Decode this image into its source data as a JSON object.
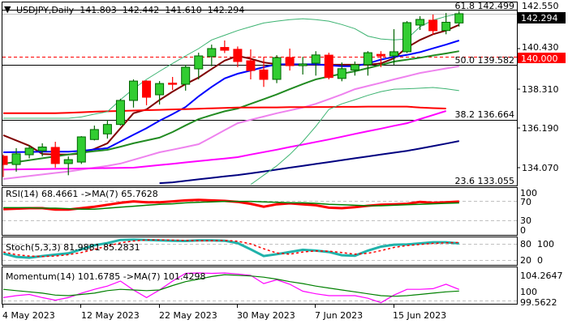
{
  "header": {
    "symbol_timeframe": "USDJPY,Daily",
    "open": "141.803",
    "high": "142.442",
    "low": "141.610",
    "close": "142.294"
  },
  "price_axis": {
    "ticks": [
      "142.550",
      "140.430",
      "138.310",
      "136.190",
      "134.070"
    ],
    "current_price_label": "142.294",
    "current_price_color": "#000000",
    "level_label": "140.000",
    "level_color": "#ff0000"
  },
  "fib_levels": [
    {
      "label": "61.8 142.499",
      "level": 142.499
    },
    {
      "label": "50.0 139.582",
      "level": 139.582
    },
    {
      "label": "38.2 136.664",
      "level": 136.664
    },
    {
      "label": "23.6 133.055",
      "level": 133.055
    }
  ],
  "date_axis": [
    {
      "label": "4 May 2023",
      "date": "2023-05-04"
    },
    {
      "label": "12 May 2023",
      "date": "2023-05-12"
    },
    {
      "label": "22 May 2023",
      "date": "2023-05-22"
    },
    {
      "label": "30 May 2023",
      "date": "2023-05-30"
    },
    {
      "label": "7 Jun 2023",
      "date": "2023-06-07"
    },
    {
      "label": "15 Jun 2023",
      "date": "2023-06-15"
    }
  ],
  "indicators": {
    "rsi": {
      "label": "RSI(14) 68.4661  ->MA(7) 65.7628",
      "axis": [
        "100",
        "70",
        "30",
        "0"
      ]
    },
    "stoch": {
      "label": "Stoch(5,3,3) 81.9881 85.2831",
      "axis": [
        "80",
        "100",
        "20",
        "0"
      ]
    },
    "momentum": {
      "label": "Momentum(14) 101.6785  ->MA(7) 101.4298",
      "axis": [
        "104.2647",
        "99.5622",
        "100"
      ]
    }
  },
  "colors": {
    "bull_fill": "#32cd32",
    "bull_edge": "#006400",
    "bear": "#ff0000"
  },
  "chart_data": {
    "type": "candlestick",
    "ylim": [
      133.0,
      142.6
    ],
    "dates": [
      "2023-05-04",
      "2023-05-05",
      "2023-05-08",
      "2023-05-09",
      "2023-05-10",
      "2023-05-11",
      "2023-05-12",
      "2023-05-15",
      "2023-05-16",
      "2023-05-17",
      "2023-05-18",
      "2023-05-19",
      "2023-05-22",
      "2023-05-23",
      "2023-05-24",
      "2023-05-25",
      "2023-05-26",
      "2023-05-29",
      "2023-05-30",
      "2023-05-31",
      "2023-06-01",
      "2023-06-02",
      "2023-06-05",
      "2023-06-06",
      "2023-06-07",
      "2023-06-08",
      "2023-06-09",
      "2023-06-12",
      "2023-06-13",
      "2023-06-14",
      "2023-06-15",
      "2023-06-16",
      "2023-06-19",
      "2023-06-20",
      "2023-06-21",
      "2023-06-22"
    ],
    "candles": [
      [
        134.71,
        134.8,
        133.6,
        134.27
      ],
      [
        134.27,
        135.14,
        133.89,
        134.84
      ],
      [
        134.79,
        135.3,
        134.6,
        135.14
      ],
      [
        135.0,
        135.4,
        134.7,
        135.2
      ],
      [
        135.18,
        135.48,
        134.1,
        134.32
      ],
      [
        134.32,
        134.7,
        133.7,
        134.53
      ],
      [
        134.4,
        135.78,
        134.3,
        135.74
      ],
      [
        135.6,
        136.34,
        135.55,
        136.13
      ],
      [
        135.9,
        136.65,
        135.65,
        136.4
      ],
      [
        136.4,
        137.77,
        136.34,
        137.68
      ],
      [
        137.68,
        138.8,
        137.3,
        138.71
      ],
      [
        138.71,
        138.75,
        137.42,
        137.85
      ],
      [
        137.98,
        138.71,
        137.46,
        138.58
      ],
      [
        138.6,
        138.93,
        138.24,
        138.55
      ],
      [
        138.54,
        139.58,
        138.2,
        139.45
      ],
      [
        139.36,
        140.22,
        138.8,
        140.05
      ],
      [
        140.01,
        140.65,
        139.5,
        140.44
      ],
      [
        140.5,
        140.87,
        140.2,
        140.35
      ],
      [
        140.4,
        140.55,
        139.45,
        139.75
      ],
      [
        139.79,
        140.4,
        138.8,
        139.27
      ],
      [
        139.3,
        140.0,
        138.4,
        138.8
      ],
      [
        138.8,
        140.09,
        138.6,
        139.96
      ],
      [
        139.96,
        140.44,
        139.27,
        139.53
      ],
      [
        139.53,
        140.0,
        139.06,
        139.62
      ],
      [
        139.66,
        140.3,
        139.0,
        140.1
      ],
      [
        140.09,
        140.22,
        138.8,
        138.9
      ],
      [
        138.85,
        139.7,
        138.7,
        139.37
      ],
      [
        139.3,
        139.75,
        139.0,
        139.58
      ],
      [
        139.58,
        140.3,
        139.0,
        140.22
      ],
      [
        140.13,
        140.3,
        139.45,
        140.05
      ],
      [
        140.05,
        141.47,
        139.58,
        140.27
      ],
      [
        140.27,
        141.9,
        140.2,
        141.82
      ],
      [
        141.69,
        142.16,
        141.43,
        141.99
      ],
      [
        141.95,
        142.25,
        141.17,
        141.39
      ],
      [
        141.4,
        142.33,
        141.2,
        141.84
      ],
      [
        141.803,
        142.442,
        141.61,
        142.294
      ]
    ],
    "overlays": [
      {
        "color": "#800000",
        "width": 2,
        "values": [
          135.83,
          135.55,
          135.27,
          134.83,
          134.8,
          134.8,
          134.85,
          135.1,
          135.4,
          136.2,
          137.0,
          137.2,
          137.7,
          138.15,
          138.55,
          138.9,
          139.35,
          139.8,
          140.05,
          139.9,
          139.7,
          139.6,
          139.58,
          139.58,
          139.58,
          139.58,
          139.58,
          139.58,
          139.58,
          139.65,
          139.92,
          140.5,
          140.9,
          141.2,
          141.4,
          141.7
        ]
      },
      {
        "color": "#0000ff",
        "width": 2,
        "values": [
          134.92,
          134.93,
          134.94,
          134.95,
          134.95,
          134.95,
          135.0,
          135.07,
          135.14,
          135.5,
          135.85,
          136.2,
          136.6,
          136.95,
          137.33,
          137.9,
          138.4,
          138.85,
          139.1,
          139.27,
          139.45,
          139.6,
          139.6,
          139.6,
          139.6,
          139.55,
          139.5,
          139.5,
          139.65,
          139.85,
          140.0,
          140.1,
          140.25,
          140.45,
          140.65,
          140.87
        ]
      },
      {
        "color": "#228b22",
        "width": 2,
        "values": [
          134.32,
          134.4,
          134.5,
          134.6,
          134.7,
          134.8,
          134.9,
          134.98,
          135.05,
          135.22,
          135.4,
          135.55,
          135.7,
          136.0,
          136.35,
          136.69,
          136.9,
          137.1,
          137.25,
          137.5,
          137.75,
          138.0,
          138.28,
          138.55,
          138.8,
          138.95,
          139.1,
          139.23,
          139.4,
          139.57,
          139.75,
          139.85,
          139.95,
          140.07,
          140.18,
          140.3
        ]
      },
      {
        "color": "#ee82ee",
        "width": 2,
        "values": [
          133.5,
          133.58,
          133.66,
          133.74,
          133.82,
          133.9,
          134.0,
          134.1,
          134.2,
          134.32,
          134.52,
          134.72,
          134.92,
          135.06,
          135.2,
          135.35,
          135.72,
          136.1,
          136.47,
          136.65,
          136.82,
          137.0,
          137.15,
          137.3,
          137.5,
          137.75,
          138.0,
          138.28,
          138.45,
          138.62,
          138.8,
          138.97,
          139.14,
          139.26,
          139.38,
          139.5
        ]
      },
      {
        "color": "#ff00ff",
        "width": 2,
        "values": [
          134.0,
          134.01,
          134.02,
          134.03,
          134.04,
          134.05,
          134.06,
          134.07,
          134.08,
          134.09,
          134.1,
          134.17,
          134.24,
          134.31,
          134.38,
          134.45,
          134.52,
          134.59,
          134.66,
          134.8,
          134.93,
          135.06,
          135.2,
          135.33,
          135.47,
          135.6,
          135.75,
          135.9,
          136.04,
          136.18,
          136.33,
          136.47,
          136.69,
          136.9,
          137.12,
          null
        ]
      },
      {
        "color": "#000080",
        "width": 2,
        "values": [
          null,
          null,
          null,
          null,
          null,
          null,
          null,
          null,
          null,
          null,
          null,
          null,
          133.28,
          133.32,
          133.4,
          133.48,
          133.56,
          133.64,
          133.71,
          133.8,
          133.9,
          134.0,
          134.1,
          134.2,
          134.3,
          134.4,
          134.5,
          134.6,
          134.7,
          134.8,
          134.9,
          135.0,
          135.12,
          135.25,
          135.38,
          135.52
        ]
      },
      {
        "color": "#ff0000",
        "width": 2,
        "values": [
          137.0,
          137.0,
          137.0,
          137.0,
          137.0,
          137.02,
          137.05,
          137.08,
          137.1,
          137.12,
          137.14,
          137.16,
          137.18,
          137.2,
          137.22,
          137.24,
          137.26,
          137.28,
          137.3,
          137.3,
          137.31,
          137.31,
          137.32,
          137.32,
          137.33,
          137.33,
          137.34,
          137.34,
          137.35,
          137.35,
          137.35,
          137.35,
          137.3,
          137.27,
          137.25,
          null
        ]
      },
      {
        "color": "#3cb371",
        "width": 1,
        "values": [
          136.73,
          136.73,
          136.73,
          136.73,
          136.73,
          136.73,
          136.8,
          136.95,
          137.08,
          137.72,
          138.3,
          138.8,
          139.23,
          139.65,
          140.05,
          140.44,
          140.9,
          141.15,
          141.4,
          141.6,
          141.8,
          141.9,
          141.98,
          142.03,
          141.98,
          141.9,
          141.72,
          141.5,
          141.1,
          140.95,
          140.9,
          140.95,
          141.6,
          141.95,
          142.15,
          142.3
        ]
      },
      {
        "color": "#3cb371",
        "width": 1,
        "values": [
          null,
          null,
          null,
          null,
          null,
          null,
          null,
          null,
          null,
          null,
          null,
          null,
          null,
          null,
          null,
          null,
          null,
          null,
          null,
          133.2,
          133.7,
          134.2,
          134.8,
          135.5,
          136.3,
          137.2,
          137.5,
          137.72,
          137.95,
          138.15,
          138.28,
          138.3,
          138.33,
          138.37,
          138.3,
          138.2
        ]
      }
    ],
    "horizontal_level": 140.0,
    "current_price": 142.294,
    "rsi": {
      "ylim": [
        0,
        100
      ],
      "levels": [
        70,
        30
      ],
      "series": [
        {
          "color": "#ff0000",
          "width": 3,
          "values": [
            53,
            54,
            55,
            55,
            52,
            52,
            55,
            58,
            62,
            66,
            69,
            67,
            67,
            69,
            71,
            72,
            71,
            70,
            68,
            64,
            58,
            63,
            65,
            63,
            61,
            56,
            55,
            57,
            60,
            62,
            63,
            64,
            68,
            66,
            67,
            68.47
          ]
        },
        {
          "color": "#008000",
          "width": 1.5,
          "values": [
            56,
            56,
            56,
            55,
            55,
            54,
            53,
            53,
            55,
            57,
            59,
            61,
            63,
            64,
            66,
            67,
            68,
            69,
            69,
            69,
            68,
            67,
            66,
            66,
            65,
            63,
            62,
            61,
            60,
            60,
            61,
            62,
            63,
            64,
            65,
            65.76
          ]
        }
      ]
    },
    "stoch": {
      "ylim": [
        0,
        100
      ],
      "levels": [
        80,
        20
      ],
      "series": [
        {
          "color": "#20b2aa",
          "width": 3,
          "dash": "",
          "values": [
            44,
            32,
            29,
            35,
            40,
            45,
            60,
            75,
            83,
            95,
            96,
            95,
            93,
            92,
            91,
            93,
            93,
            92,
            83,
            60,
            35,
            42,
            50,
            58,
            55,
            50,
            38,
            36,
            55,
            70,
            77,
            78,
            82,
            86,
            86,
            81.99
          ]
        },
        {
          "color": "#ff0000",
          "width": 1.5,
          "dash": "3,3",
          "values": [
            50,
            40,
            35,
            33,
            35,
            40,
            48,
            60,
            72,
            84,
            91,
            95,
            95,
            94,
            93,
            92,
            92,
            93,
            90,
            80,
            62,
            46,
            42,
            50,
            54,
            53,
            48,
            42,
            45,
            55,
            67,
            74,
            78,
            82,
            84,
            85.28
          ]
        }
      ]
    },
    "momentum": {
      "ylim": [
        99.5622,
        104.2647
      ],
      "levels": [
        100
      ],
      "series": [
        {
          "color": "#ff00ff",
          "width": 1.2,
          "values": [
            100.4,
            100.7,
            100.9,
            100.4,
            100.0,
            100.4,
            101.1,
            101.7,
            102.2,
            103.0,
            101.6,
            100.4,
            101.6,
            103.0,
            104.2,
            104.26,
            104.2,
            104.26,
            104.1,
            103.9,
            102.6,
            103.2,
            102.5,
            101.4,
            101.0,
            100.7,
            100.7,
            100.7,
            100.3,
            99.6,
            100.8,
            101.7,
            101.7,
            101.8,
            102.5,
            101.68
          ]
        },
        {
          "color": "#008000",
          "width": 1.2,
          "values": [
            101.7,
            101.5,
            101.3,
            101.1,
            100.8,
            100.7,
            100.9,
            101.1,
            101.5,
            101.7,
            101.6,
            101.5,
            101.6,
            102.3,
            102.9,
            103.3,
            103.7,
            104.0,
            103.9,
            103.8,
            103.6,
            103.3,
            102.9,
            102.6,
            102.2,
            101.9,
            101.6,
            101.3,
            101.0,
            100.7,
            100.6,
            100.7,
            100.9,
            101.1,
            101.3,
            101.43
          ]
        }
      ]
    }
  }
}
